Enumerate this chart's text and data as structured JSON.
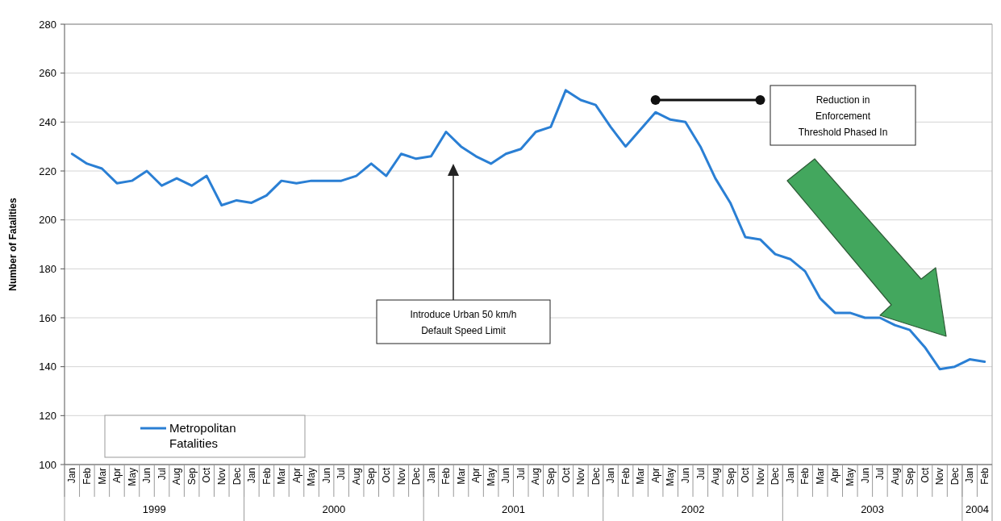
{
  "chart_data": {
    "type": "line",
    "ylabel": "Number of Fatalities",
    "categories": [
      "Jan",
      "Feb",
      "Mar",
      "Apr",
      "May",
      "Jun",
      "Jul",
      "Aug",
      "Sep",
      "Oct",
      "Nov",
      "Dec",
      "Jan",
      "Feb",
      "Mar",
      "Apr",
      "May",
      "Jun",
      "Jul",
      "Aug",
      "Sep",
      "Oct",
      "Nov",
      "Dec",
      "Jan",
      "Feb",
      "Mar",
      "Apr",
      "May",
      "Jun",
      "Jul",
      "Aug",
      "Sep",
      "Oct",
      "Nov",
      "Dec",
      "Jan",
      "Feb",
      "Mar",
      "Apr",
      "May",
      "Jun",
      "Jul",
      "Aug",
      "Sep",
      "Oct",
      "Nov",
      "Dec",
      "Jan",
      "Feb",
      "Mar",
      "Apr",
      "May",
      "Jun",
      "Jul",
      "Aug",
      "Sep",
      "Oct",
      "Nov",
      "Dec",
      "Jan",
      "Feb"
    ],
    "series": [
      {
        "name": "Metropolitan Fatalities",
        "color": "#2a7fd4",
        "values": [
          227,
          223,
          221,
          215,
          216,
          220,
          214,
          217,
          214,
          218,
          206,
          208,
          207,
          210,
          216,
          215,
          216,
          216,
          216,
          218,
          223,
          218,
          227,
          225,
          226,
          236,
          230,
          226,
          223,
          227,
          229,
          236,
          238,
          253,
          249,
          247,
          238,
          230,
          237,
          244,
          241,
          240,
          230,
          217,
          207,
          193,
          192,
          186,
          184,
          179,
          168,
          162,
          162,
          160,
          160,
          157,
          155,
          148,
          139,
          140,
          143,
          142
        ]
      }
    ],
    "ylim": [
      100,
      280
    ],
    "yticks": [
      100,
      120,
      140,
      160,
      180,
      200,
      220,
      240,
      260,
      280
    ],
    "grid": "y",
    "legend": "bottom left",
    "marker": "none",
    "line_style": "solid",
    "annotations": [
      "Introduce Urban 50 km/h Default Speed Limit",
      "Reduction in Enforcement Threshold Phased In",
      "1999",
      "2000",
      "2001",
      "2002",
      "2003",
      "2004"
    ]
  }
}
